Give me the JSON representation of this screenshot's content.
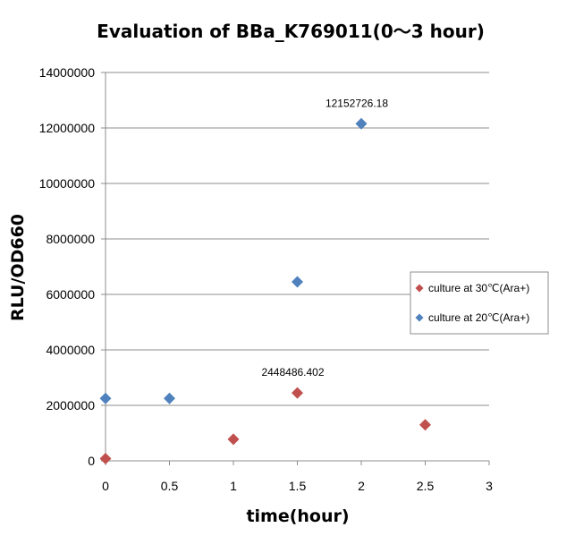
{
  "chart_data": {
    "type": "scatter",
    "title": "Evaluation of BBa_K769011(0〜3 hour)",
    "xlabel": "time(hour)",
    "ylabel": "RLU/OD660",
    "xlim": [
      0,
      3
    ],
    "ylim": [
      0,
      14000000
    ],
    "x_ticks": [
      "0",
      "0.5",
      "1",
      "1.5",
      "2",
      "2.5",
      "3"
    ],
    "y_ticks": [
      "0",
      "2000000",
      "4000000",
      "6000000",
      "8000000",
      "10000000",
      "12000000",
      "14000000"
    ],
    "grid": "horizontal",
    "legend_position": "right",
    "series": [
      {
        "name": "culture at 30℃(Ara+)",
        "color": "#c0504d",
        "marker": "diamond",
        "x": [
          0,
          1,
          1.5,
          2.5
        ],
        "y": [
          80000,
          780000,
          2448486.402,
          1300000
        ]
      },
      {
        "name": "culture at 20℃(Ara+)",
        "color": "#4f81bd",
        "marker": "diamond",
        "x": [
          0,
          0.5,
          1.5,
          2
        ],
        "y": [
          2250000,
          2250000,
          6450000,
          12152726.18
        ]
      }
    ],
    "annotations": [
      {
        "text": "12152726.18",
        "x": 2,
        "y": 12152726.18
      },
      {
        "text": "2448486.402",
        "x": 1.5,
        "y": 2448486.402
      }
    ]
  }
}
